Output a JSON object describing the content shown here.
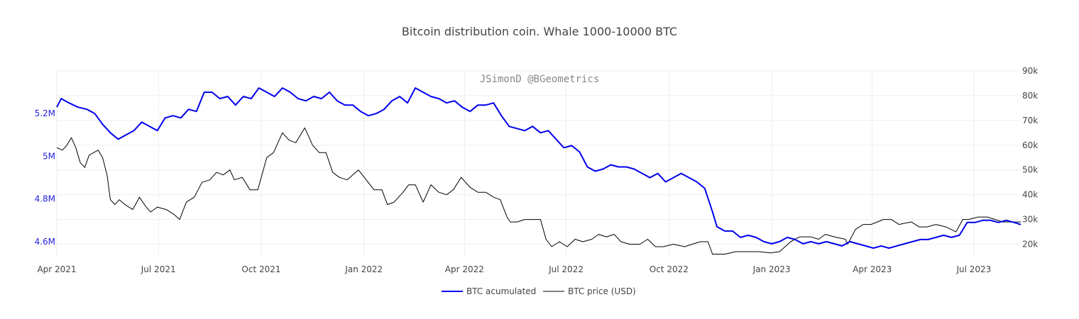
{
  "chart_data": {
    "type": "line",
    "title": "Bitcoin distribution coin. Whale 1000-10000 BTC",
    "annotation": "JSimonD @BGeometrics",
    "colors": {
      "accumulated": "#0000ee",
      "price": "#000000",
      "left_axis_text": "#2222dd",
      "grid": "#eeeeee"
    },
    "x_axis": {
      "range": [
        "2021-04-01",
        "2023-08-12"
      ],
      "ticks": [
        {
          "date": "2021-04-01",
          "label": "Apr 2021"
        },
        {
          "date": "2021-07-01",
          "label": "Jul 2021"
        },
        {
          "date": "2021-10-01",
          "label": "Oct 2021"
        },
        {
          "date": "2022-01-01",
          "label": "Jan 2022"
        },
        {
          "date": "2022-04-01",
          "label": "Apr 2022"
        },
        {
          "date": "2022-07-01",
          "label": "Jul 2022"
        },
        {
          "date": "2022-10-01",
          "label": "Oct 2022"
        },
        {
          "date": "2023-01-01",
          "label": "Jan 2023"
        },
        {
          "date": "2023-04-01",
          "label": "Apr 2023"
        },
        {
          "date": "2023-07-01",
          "label": "Jul 2023"
        }
      ]
    },
    "y_left": {
      "range": [
        4.53,
        5.4
      ],
      "ticks": [
        {
          "value": 4.6,
          "label": "4.6M"
        },
        {
          "value": 4.8,
          "label": "4.8M"
        },
        {
          "value": 5.0,
          "label": "5M"
        },
        {
          "value": 5.2,
          "label": "5.2M"
        }
      ]
    },
    "y_right": {
      "range": [
        15,
        90
      ],
      "ticks": [
        {
          "value": 20,
          "label": "20k"
        },
        {
          "value": 30,
          "label": "30k"
        },
        {
          "value": 40,
          "label": "40k"
        },
        {
          "value": 50,
          "label": "50k"
        },
        {
          "value": 60,
          "label": "60k"
        },
        {
          "value": 70,
          "label": "70k"
        },
        {
          "value": 80,
          "label": "80k"
        },
        {
          "value": 90,
          "label": "90k"
        }
      ]
    },
    "series": [
      {
        "name": "BTC acumulated",
        "axis": "left",
        "unit": "BTC (millions)",
        "points": [
          [
            "2021-04-01",
            5.23
          ],
          [
            "2021-04-05",
            5.27
          ],
          [
            "2021-04-12",
            5.25
          ],
          [
            "2021-04-20",
            5.23
          ],
          [
            "2021-04-28",
            5.22
          ],
          [
            "2021-05-05",
            5.2
          ],
          [
            "2021-05-12",
            5.15
          ],
          [
            "2021-05-19",
            5.11
          ],
          [
            "2021-05-26",
            5.08
          ],
          [
            "2021-06-02",
            5.1
          ],
          [
            "2021-06-09",
            5.12
          ],
          [
            "2021-06-16",
            5.16
          ],
          [
            "2021-06-23",
            5.14
          ],
          [
            "2021-06-30",
            5.12
          ],
          [
            "2021-07-07",
            5.18
          ],
          [
            "2021-07-14",
            5.19
          ],
          [
            "2021-07-21",
            5.18
          ],
          [
            "2021-07-28",
            5.22
          ],
          [
            "2021-08-04",
            5.21
          ],
          [
            "2021-08-11",
            5.3
          ],
          [
            "2021-08-18",
            5.3
          ],
          [
            "2021-08-25",
            5.27
          ],
          [
            "2021-09-01",
            5.28
          ],
          [
            "2021-09-08",
            5.24
          ],
          [
            "2021-09-15",
            5.28
          ],
          [
            "2021-09-22",
            5.27
          ],
          [
            "2021-09-29",
            5.32
          ],
          [
            "2021-10-06",
            5.3
          ],
          [
            "2021-10-13",
            5.28
          ],
          [
            "2021-10-20",
            5.32
          ],
          [
            "2021-10-27",
            5.3
          ],
          [
            "2021-11-03",
            5.27
          ],
          [
            "2021-11-10",
            5.26
          ],
          [
            "2021-11-17",
            5.28
          ],
          [
            "2021-11-24",
            5.27
          ],
          [
            "2021-12-01",
            5.3
          ],
          [
            "2021-12-08",
            5.26
          ],
          [
            "2021-12-15",
            5.24
          ],
          [
            "2021-12-22",
            5.24
          ],
          [
            "2021-12-29",
            5.21
          ],
          [
            "2022-01-05",
            5.19
          ],
          [
            "2022-01-12",
            5.2
          ],
          [
            "2022-01-19",
            5.22
          ],
          [
            "2022-01-26",
            5.26
          ],
          [
            "2022-02-02",
            5.28
          ],
          [
            "2022-02-09",
            5.25
          ],
          [
            "2022-02-16",
            5.32
          ],
          [
            "2022-02-23",
            5.3
          ],
          [
            "2022-03-02",
            5.28
          ],
          [
            "2022-03-09",
            5.27
          ],
          [
            "2022-03-16",
            5.25
          ],
          [
            "2022-03-23",
            5.26
          ],
          [
            "2022-03-30",
            5.23
          ],
          [
            "2022-04-06",
            5.21
          ],
          [
            "2022-04-13",
            5.24
          ],
          [
            "2022-04-20",
            5.24
          ],
          [
            "2022-04-27",
            5.25
          ],
          [
            "2022-05-04",
            5.19
          ],
          [
            "2022-05-11",
            5.14
          ],
          [
            "2022-05-18",
            5.13
          ],
          [
            "2022-05-25",
            5.12
          ],
          [
            "2022-06-01",
            5.14
          ],
          [
            "2022-06-08",
            5.11
          ],
          [
            "2022-06-15",
            5.12
          ],
          [
            "2022-06-22",
            5.08
          ],
          [
            "2022-06-29",
            5.04
          ],
          [
            "2022-07-06",
            5.05
          ],
          [
            "2022-07-13",
            5.02
          ],
          [
            "2022-07-20",
            4.95
          ],
          [
            "2022-07-27",
            4.93
          ],
          [
            "2022-08-03",
            4.94
          ],
          [
            "2022-08-10",
            4.96
          ],
          [
            "2022-08-17",
            4.95
          ],
          [
            "2022-08-24",
            4.95
          ],
          [
            "2022-08-31",
            4.94
          ],
          [
            "2022-09-07",
            4.92
          ],
          [
            "2022-09-14",
            4.9
          ],
          [
            "2022-09-21",
            4.92
          ],
          [
            "2022-09-28",
            4.88
          ],
          [
            "2022-10-05",
            4.9
          ],
          [
            "2022-10-12",
            4.92
          ],
          [
            "2022-10-19",
            4.9
          ],
          [
            "2022-10-26",
            4.88
          ],
          [
            "2022-11-02",
            4.85
          ],
          [
            "2022-11-09",
            4.74
          ],
          [
            "2022-11-13",
            4.67
          ],
          [
            "2022-11-20",
            4.65
          ],
          [
            "2022-11-27",
            4.65
          ],
          [
            "2022-12-04",
            4.62
          ],
          [
            "2022-12-11",
            4.63
          ],
          [
            "2022-12-18",
            4.62
          ],
          [
            "2022-12-25",
            4.6
          ],
          [
            "2023-01-01",
            4.59
          ],
          [
            "2023-01-08",
            4.6
          ],
          [
            "2023-01-15",
            4.62
          ],
          [
            "2023-01-22",
            4.61
          ],
          [
            "2023-01-29",
            4.59
          ],
          [
            "2023-02-05",
            4.6
          ],
          [
            "2023-02-12",
            4.59
          ],
          [
            "2023-02-19",
            4.6
          ],
          [
            "2023-02-26",
            4.59
          ],
          [
            "2023-03-05",
            4.58
          ],
          [
            "2023-03-12",
            4.6
          ],
          [
            "2023-03-19",
            4.59
          ],
          [
            "2023-03-26",
            4.58
          ],
          [
            "2023-04-02",
            4.57
          ],
          [
            "2023-04-09",
            4.58
          ],
          [
            "2023-04-16",
            4.57
          ],
          [
            "2023-04-23",
            4.58
          ],
          [
            "2023-04-30",
            4.59
          ],
          [
            "2023-05-07",
            4.6
          ],
          [
            "2023-05-14",
            4.61
          ],
          [
            "2023-05-21",
            4.61
          ],
          [
            "2023-05-28",
            4.62
          ],
          [
            "2023-06-04",
            4.63
          ],
          [
            "2023-06-11",
            4.62
          ],
          [
            "2023-06-18",
            4.63
          ],
          [
            "2023-06-25",
            4.69
          ],
          [
            "2023-07-02",
            4.69
          ],
          [
            "2023-07-09",
            4.7
          ],
          [
            "2023-07-16",
            4.7
          ],
          [
            "2023-07-23",
            4.69
          ],
          [
            "2023-07-30",
            4.7
          ],
          [
            "2023-08-06",
            4.69
          ],
          [
            "2023-08-12",
            4.68
          ]
        ]
      },
      {
        "name": "BTC price (USD)",
        "axis": "right",
        "unit": "USD (thousands)",
        "points": [
          [
            "2021-04-01",
            59
          ],
          [
            "2021-04-06",
            58
          ],
          [
            "2021-04-10",
            60
          ],
          [
            "2021-04-14",
            63
          ],
          [
            "2021-04-18",
            59
          ],
          [
            "2021-04-22",
            53
          ],
          [
            "2021-04-26",
            51
          ],
          [
            "2021-04-30",
            56
          ],
          [
            "2021-05-04",
            57
          ],
          [
            "2021-05-08",
            58
          ],
          [
            "2021-05-12",
            55
          ],
          [
            "2021-05-16",
            48
          ],
          [
            "2021-05-19",
            38
          ],
          [
            "2021-05-23",
            36
          ],
          [
            "2021-05-27",
            38
          ],
          [
            "2021-06-01",
            36
          ],
          [
            "2021-06-08",
            34
          ],
          [
            "2021-06-14",
            39
          ],
          [
            "2021-06-20",
            35
          ],
          [
            "2021-06-24",
            33
          ],
          [
            "2021-06-30",
            35
          ],
          [
            "2021-07-08",
            34
          ],
          [
            "2021-07-15",
            32
          ],
          [
            "2021-07-20",
            30
          ],
          [
            "2021-07-26",
            37
          ],
          [
            "2021-08-02",
            39
          ],
          [
            "2021-08-09",
            45
          ],
          [
            "2021-08-16",
            46
          ],
          [
            "2021-08-22",
            49
          ],
          [
            "2021-08-28",
            48
          ],
          [
            "2021-09-03",
            50
          ],
          [
            "2021-09-07",
            46
          ],
          [
            "2021-09-14",
            47
          ],
          [
            "2021-09-21",
            42
          ],
          [
            "2021-09-28",
            42
          ],
          [
            "2021-10-01",
            47
          ],
          [
            "2021-10-06",
            55
          ],
          [
            "2021-10-12",
            57
          ],
          [
            "2021-10-16",
            61
          ],
          [
            "2021-10-20",
            65
          ],
          [
            "2021-10-26",
            62
          ],
          [
            "2021-11-01",
            61
          ],
          [
            "2021-11-09",
            67
          ],
          [
            "2021-11-16",
            60
          ],
          [
            "2021-11-22",
            57
          ],
          [
            "2021-11-28",
            57
          ],
          [
            "2021-12-04",
            49
          ],
          [
            "2021-12-10",
            47
          ],
          [
            "2021-12-17",
            46
          ],
          [
            "2021-12-27",
            50
          ],
          [
            "2022-01-03",
            46
          ],
          [
            "2022-01-10",
            42
          ],
          [
            "2022-01-17",
            42
          ],
          [
            "2022-01-22",
            36
          ],
          [
            "2022-01-28",
            37
          ],
          [
            "2022-02-05",
            41
          ],
          [
            "2022-02-10",
            44
          ],
          [
            "2022-02-16",
            44
          ],
          [
            "2022-02-23",
            37
          ],
          [
            "2022-03-02",
            44
          ],
          [
            "2022-03-09",
            41
          ],
          [
            "2022-03-16",
            40
          ],
          [
            "2022-03-22",
            42
          ],
          [
            "2022-03-29",
            47
          ],
          [
            "2022-04-06",
            43
          ],
          [
            "2022-04-13",
            41
          ],
          [
            "2022-04-20",
            41
          ],
          [
            "2022-04-27",
            39
          ],
          [
            "2022-05-03",
            38
          ],
          [
            "2022-05-09",
            31
          ],
          [
            "2022-05-12",
            29
          ],
          [
            "2022-05-18",
            29
          ],
          [
            "2022-05-25",
            30
          ],
          [
            "2022-06-01",
            30
          ],
          [
            "2022-06-08",
            30
          ],
          [
            "2022-06-13",
            22
          ],
          [
            "2022-06-18",
            19
          ],
          [
            "2022-06-25",
            21
          ],
          [
            "2022-07-02",
            19
          ],
          [
            "2022-07-09",
            22
          ],
          [
            "2022-07-16",
            21
          ],
          [
            "2022-07-24",
            22
          ],
          [
            "2022-07-30",
            24
          ],
          [
            "2022-08-06",
            23
          ],
          [
            "2022-08-13",
            24
          ],
          [
            "2022-08-19",
            21
          ],
          [
            "2022-08-27",
            20
          ],
          [
            "2022-09-05",
            20
          ],
          [
            "2022-09-12",
            22
          ],
          [
            "2022-09-19",
            19
          ],
          [
            "2022-09-26",
            19
          ],
          [
            "2022-10-05",
            20
          ],
          [
            "2022-10-15",
            19
          ],
          [
            "2022-10-29",
            21
          ],
          [
            "2022-11-05",
            21
          ],
          [
            "2022-11-09",
            16
          ],
          [
            "2022-11-20",
            16
          ],
          [
            "2022-11-30",
            17
          ],
          [
            "2022-12-10",
            17
          ],
          [
            "2022-12-20",
            17
          ],
          [
            "2022-12-31",
            16.5
          ],
          [
            "2023-01-08",
            17
          ],
          [
            "2023-01-13",
            19
          ],
          [
            "2023-01-18",
            21
          ],
          [
            "2023-01-26",
            23
          ],
          [
            "2023-02-05",
            23
          ],
          [
            "2023-02-12",
            22
          ],
          [
            "2023-02-18",
            24
          ],
          [
            "2023-02-26",
            23
          ],
          [
            "2023-03-08",
            22
          ],
          [
            "2023-03-10",
            20
          ],
          [
            "2023-03-17",
            26
          ],
          [
            "2023-03-24",
            28
          ],
          [
            "2023-03-31",
            28
          ],
          [
            "2023-04-11",
            30
          ],
          [
            "2023-04-18",
            30
          ],
          [
            "2023-04-25",
            28
          ],
          [
            "2023-05-06",
            29
          ],
          [
            "2023-05-13",
            27
          ],
          [
            "2023-05-20",
            27
          ],
          [
            "2023-05-28",
            28
          ],
          [
            "2023-06-06",
            27
          ],
          [
            "2023-06-15",
            25
          ],
          [
            "2023-06-21",
            30
          ],
          [
            "2023-06-26",
            30
          ],
          [
            "2023-07-05",
            31
          ],
          [
            "2023-07-13",
            31
          ],
          [
            "2023-07-20",
            30
          ],
          [
            "2023-07-27",
            29
          ],
          [
            "2023-08-03",
            29
          ],
          [
            "2023-08-12",
            29
          ]
        ]
      }
    ],
    "legend": {
      "position": "bottom-center",
      "items": [
        {
          "label": "BTC acumulated",
          "color": "#0000ee"
        },
        {
          "label": "BTC price (USD)",
          "color": "#000000"
        }
      ]
    },
    "grid": true
  }
}
